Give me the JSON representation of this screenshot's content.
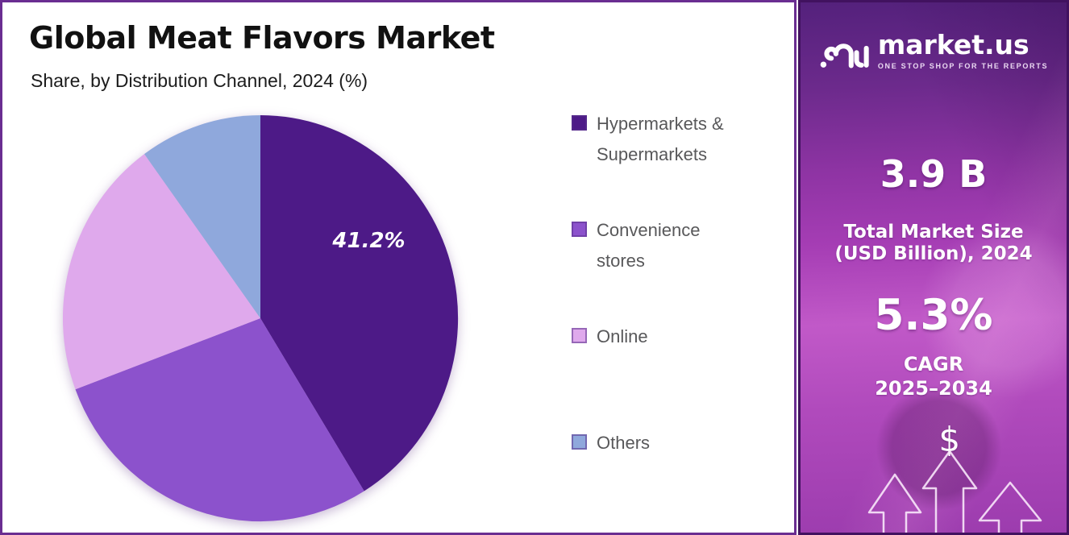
{
  "header": {
    "title": "Global Meat Flavors Market",
    "subtitle": "Share, by Distribution Channel, 2024 (%)"
  },
  "chart_data": {
    "type": "pie",
    "title": "Global Meat Flavors Market Share, by Distribution Channel, 2024 (%)",
    "value_unit": "%",
    "direction": "clockwise",
    "start_angle_deg": 0,
    "legend_position": "right",
    "slices": [
      {
        "label": "Hypermarkets & Supermarkets",
        "value": 41.2,
        "color": "#4D1A87",
        "data_label": "41.2%",
        "data_label_angle_deg": 55,
        "data_label_radius_frac": 0.67
      },
      {
        "label": "Convenience stores",
        "value": 28.1,
        "color": "#8C52CC"
      },
      {
        "label": "Online",
        "value": 20.7,
        "color": "#DFA9EC"
      },
      {
        "label": "Others",
        "value": 10.0,
        "color": "#8FA8DC"
      }
    ],
    "note": "Only the largest slice carries a visible data label (41.2%); remaining slice values are estimated from arc angles."
  },
  "sidebar": {
    "brand": {
      "logo_icon": "market-us-logo",
      "name": "market.us",
      "tagline": "ONE STOP SHOP FOR THE REPORTS"
    },
    "stat_market_size": {
      "value": "3.9 B",
      "label_line1": "Total Market Size",
      "label_line2": "(USD Billion), 2024"
    },
    "stat_cagr": {
      "value": "5.3%",
      "label_line1": "CAGR",
      "label_line2": "2025–2034"
    },
    "dollar_symbol": "$",
    "colors": {
      "gradient_top": "#54217C",
      "gradient_mid": "#A53DB4",
      "gradient_pink": "#C159C8",
      "gradient_bottom": "#9C3CAE",
      "border": "#41125F"
    }
  },
  "panel": {
    "background": "#FFFFFF",
    "border_color": "#6A2D91",
    "title_color": "#111111",
    "legend_text_color": "#58585A"
  }
}
